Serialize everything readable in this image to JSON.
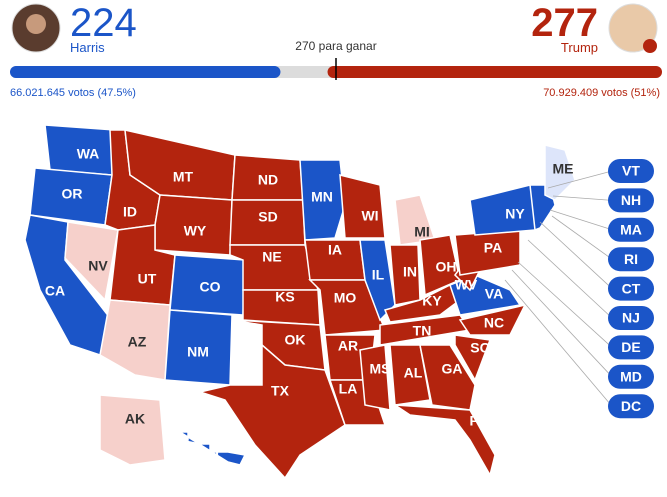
{
  "header": {
    "left": {
      "name": "Harris",
      "electoral_votes": 224,
      "color": "#1b55c8",
      "votes_label": "66.021.645 votos (47.5%)"
    },
    "right": {
      "name": "Trump",
      "electoral_votes": 277,
      "color": "#b3240e",
      "votes_label": "70.929.409 votos (51%)"
    },
    "threshold": {
      "value": 270,
      "label": "270 para ganar"
    },
    "undecided_color": "#dcdcdc"
  },
  "states": [
    {
      "label": "WA",
      "color": "#1b55c8"
    },
    {
      "label": "OR",
      "color": "#1b55c8"
    },
    {
      "label": "CA",
      "color": "#1b55c8"
    },
    {
      "label": "NV",
      "color": "#f6d0cb"
    },
    {
      "label": "ID",
      "color": "#b3240e"
    },
    {
      "label": "MT",
      "color": "#b3240e"
    },
    {
      "label": "WY",
      "color": "#b3240e"
    },
    {
      "label": "UT",
      "color": "#b3240e"
    },
    {
      "label": "AZ",
      "color": "#f6d0cb"
    },
    {
      "label": "CO",
      "color": "#1b55c8"
    },
    {
      "label": "NM",
      "color": "#1b55c8"
    },
    {
      "label": "ND",
      "color": "#b3240e"
    },
    {
      "label": "SD",
      "color": "#b3240e"
    },
    {
      "label": "NE",
      "color": "#b3240e"
    },
    {
      "label": "KS",
      "color": "#b3240e"
    },
    {
      "label": "OK",
      "color": "#b3240e"
    },
    {
      "label": "TX",
      "color": "#b3240e"
    },
    {
      "label": "MN",
      "color": "#1b55c8"
    },
    {
      "label": "IA",
      "color": "#b3240e"
    },
    {
      "label": "MO",
      "color": "#b3240e"
    },
    {
      "label": "AR",
      "color": "#b3240e"
    },
    {
      "label": "LA",
      "color": "#b3240e"
    },
    {
      "label": "WI",
      "color": "#b3240e"
    },
    {
      "label": "IL",
      "color": "#1b55c8"
    },
    {
      "label": "MI",
      "color": "#f6d0cb"
    },
    {
      "label": "IN",
      "color": "#b3240e"
    },
    {
      "label": "OH",
      "color": "#b3240e"
    },
    {
      "label": "KY",
      "color": "#b3240e"
    },
    {
      "label": "TN",
      "color": "#b3240e"
    },
    {
      "label": "MS",
      "color": "#b3240e"
    },
    {
      "label": "AL",
      "color": "#b3240e"
    },
    {
      "label": "GA",
      "color": "#b3240e"
    },
    {
      "label": "FL",
      "color": "#b3240e"
    },
    {
      "label": "SC",
      "color": "#b3240e"
    },
    {
      "label": "NC",
      "color": "#b3240e"
    },
    {
      "label": "VA",
      "color": "#1b55c8"
    },
    {
      "label": "WV",
      "color": "#b3240e"
    },
    {
      "label": "PA",
      "color": "#b3240e"
    },
    {
      "label": "NY",
      "color": "#1b55c8"
    },
    {
      "label": "ME",
      "color": "#dde5fa"
    },
    {
      "label": "AK",
      "color": "#f6d0cb"
    },
    {
      "label": "HI",
      "color": "#1b55c8"
    }
  ],
  "small_states": [
    {
      "label": "VT",
      "color": "#1b55c8"
    },
    {
      "label": "NH",
      "color": "#1b55c8"
    },
    {
      "label": "MA",
      "color": "#1b55c8"
    },
    {
      "label": "RI",
      "color": "#1b55c8"
    },
    {
      "label": "CT",
      "color": "#1b55c8"
    },
    {
      "label": "NJ",
      "color": "#1b55c8"
    },
    {
      "label": "DE",
      "color": "#1b55c8"
    },
    {
      "label": "MD",
      "color": "#1b55c8"
    },
    {
      "label": "DC",
      "color": "#1b55c8"
    }
  ]
}
